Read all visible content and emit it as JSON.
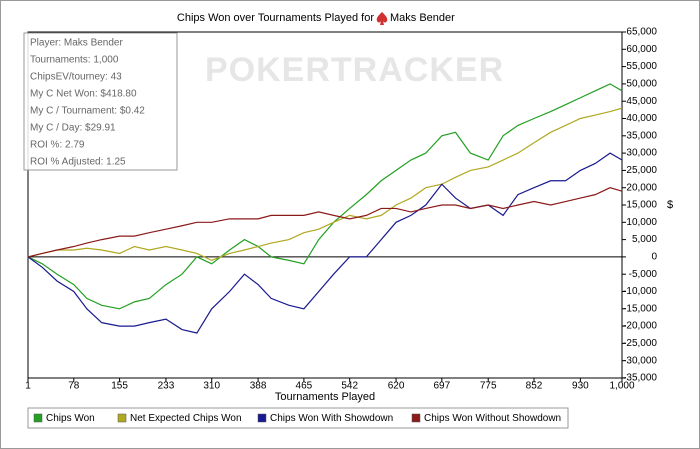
{
  "chart_data": {
    "type": "line",
    "title": "Chips Won over Tournaments Played for",
    "player_name": "Maks Bender",
    "watermark": "POKERTRACKER",
    "info_box": [
      "Player: Maks Bender",
      "Tournaments: 1,000",
      "ChipsEV/tourney: 43",
      "My C Net Won: $418.80",
      "My C / Tournament: $0.42",
      "My C / Day: $29.91",
      "ROI %: 2.79",
      "ROI % Adjusted: 1.25"
    ],
    "x_label": "Tournaments Played",
    "y_label": "$",
    "x": [
      1,
      25,
      50,
      78,
      100,
      125,
      155,
      180,
      205,
      233,
      260,
      285,
      310,
      340,
      365,
      388,
      410,
      440,
      465,
      490,
      515,
      542,
      570,
      595,
      620,
      645,
      670,
      697,
      720,
      745,
      775,
      800,
      825,
      852,
      880,
      905,
      930,
      955,
      980,
      1000
    ],
    "series": [
      {
        "name": "Chips Won",
        "color": "#22a022",
        "values": [
          0,
          -2000,
          -5000,
          -8000,
          -12000,
          -14000,
          -15000,
          -13000,
          -12000,
          -8000,
          -5000,
          0,
          -2000,
          2000,
          5000,
          3000,
          0,
          -1000,
          -2000,
          5000,
          10000,
          14000,
          18000,
          22000,
          25000,
          28000,
          30000,
          35000,
          36000,
          30000,
          28000,
          35000,
          38000,
          40000,
          42000,
          44000,
          46000,
          48000,
          50000,
          48000
        ]
      },
      {
        "name": "Net Expected Chips Won",
        "color": "#b0a820",
        "values": [
          0,
          1000,
          2000,
          2000,
          2500,
          2000,
          1000,
          3000,
          2000,
          3000,
          2000,
          1000,
          -1000,
          1000,
          2000,
          3000,
          4000,
          5000,
          7000,
          8000,
          10000,
          12000,
          11000,
          12000,
          15000,
          17000,
          20000,
          21000,
          23000,
          25000,
          26000,
          28000,
          30000,
          33000,
          36000,
          38000,
          40000,
          41000,
          42000,
          43000
        ]
      },
      {
        "name": "Chips Won With Showdown",
        "color": "#1a1a90",
        "values": [
          0,
          -3000,
          -7000,
          -10000,
          -15000,
          -19000,
          -20000,
          -20000,
          -19000,
          -18000,
          -21000,
          -22000,
          -15000,
          -10000,
          -5000,
          -8000,
          -12000,
          -14000,
          -15000,
          -10000,
          -5000,
          0,
          0,
          5000,
          10000,
          12000,
          15000,
          21000,
          17000,
          14000,
          15000,
          12000,
          18000,
          20000,
          22000,
          22000,
          25000,
          27000,
          30000,
          28000
        ]
      },
      {
        "name": "Chips Won Without Showdown",
        "color": "#8b1a1a",
        "values": [
          0,
          1000,
          2000,
          3000,
          4000,
          5000,
          6000,
          6000,
          7000,
          8000,
          9000,
          10000,
          10000,
          11000,
          11000,
          11000,
          12000,
          12000,
          12000,
          13000,
          12000,
          11000,
          12000,
          14000,
          14000,
          13000,
          14000,
          15000,
          15000,
          14000,
          15000,
          14000,
          15000,
          16000,
          15000,
          16000,
          17000,
          18000,
          20000,
          19000
        ]
      }
    ],
    "xlim": [
      1,
      1000
    ],
    "xticks": [
      1,
      78,
      155,
      233,
      310,
      388,
      465,
      542,
      620,
      697,
      775,
      852,
      930,
      {
        "value": 1000,
        "label": "1,000"
      }
    ],
    "ylim": [
      -35000,
      65000
    ],
    "yticks": [
      {
        "value": 65000,
        "label": "65,000"
      },
      {
        "value": 60000,
        "label": "60,000"
      },
      {
        "value": 55000,
        "label": "55,000"
      },
      {
        "value": 50000,
        "label": "50,000"
      },
      {
        "value": 45000,
        "label": "45,000"
      },
      {
        "value": 40000,
        "label": "40,000"
      },
      {
        "value": 35000,
        "label": "35,000"
      },
      {
        "value": 30000,
        "label": "30,000"
      },
      {
        "value": 25000,
        "label": "25,000"
      },
      {
        "value": 20000,
        "label": "20,000"
      },
      {
        "value": 15000,
        "label": "15,000"
      },
      {
        "value": 10000,
        "label": "10,000"
      },
      {
        "value": 5000,
        "label": "5,000"
      },
      0,
      {
        "value": -5000,
        "label": "-5,000"
      },
      {
        "value": -10000,
        "label": "-10,000"
      },
      {
        "value": -15000,
        "label": "-15,000"
      },
      {
        "value": -20000,
        "label": "-20,000"
      },
      {
        "value": -25000,
        "label": "-25,000"
      },
      {
        "value": -30000,
        "label": "-30,000"
      },
      {
        "value": -35000,
        "label": "-35,000"
      }
    ]
  }
}
